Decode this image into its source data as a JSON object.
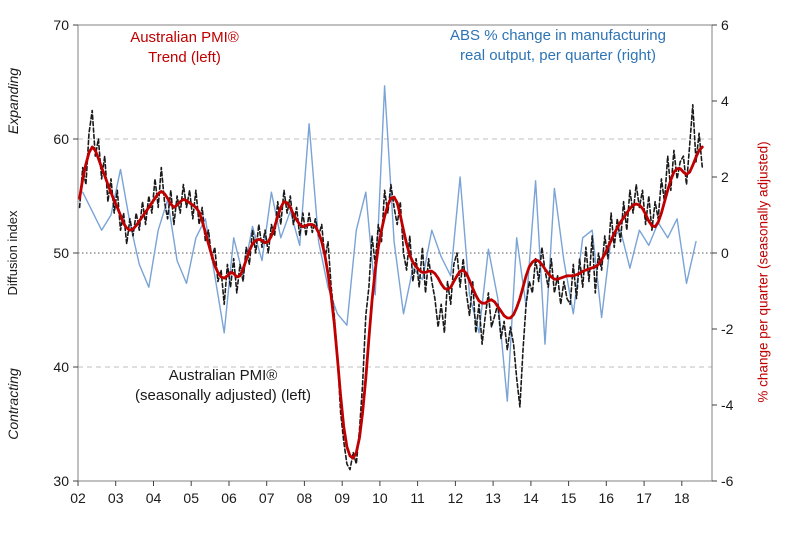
{
  "page": {
    "background": "#ffffff"
  },
  "chart": {
    "annotations": {
      "trend_line1": "Australian PMI®",
      "trend_line2": "Trend (left)",
      "abs_line1": "ABS % change in manufacturing",
      "abs_line2": "real output, per quarter (right)",
      "sa_line1": "Australian PMI®",
      "sa_line2": "(seasonally adjusted) (left)"
    },
    "left_axis": {
      "region_top": "Expanding",
      "region_bottom": "Contracting",
      "label": "Diffusion index"
    },
    "right_axis": {
      "label": "% change per quarter (seasonally adjusted)"
    },
    "colors": {
      "trend": "#C00000",
      "sa": "#1A1A1A",
      "abs_line": "#7AA3D6",
      "abs_text": "#2E74B5",
      "negative_tick": "#E60000",
      "grid_dashed": "#BFBFBF",
      "grid_dotted": "#595959",
      "frame": "#808080"
    }
  },
  "chart_data": {
    "type": "line",
    "title": "",
    "xlabel": "",
    "ylabel_left": "Diffusion index",
    "ylabel_right": "% change per quarter (seasonally adjusted)",
    "legend_position": "inside-top",
    "grid": "horizontal-dashed-at-60-and-40, dotted-at-50",
    "x_range": [
      2002,
      2018.8
    ],
    "x_tick_years": [
      2002,
      2003,
      2004,
      2005,
      2006,
      2007,
      2008,
      2009,
      2010,
      2011,
      2012,
      2013,
      2014,
      2015,
      2016,
      2017,
      2018
    ],
    "x_tick_labels": [
      "02",
      "03",
      "04",
      "05",
      "06",
      "07",
      "08",
      "09",
      "10",
      "11",
      "12",
      "13",
      "14",
      "15",
      "16",
      "17",
      "18"
    ],
    "left_ylim": [
      30,
      70
    ],
    "left_ticks": [
      70,
      60,
      50,
      40,
      30
    ],
    "right_ylim": [
      -6,
      6
    ],
    "right_ticks": [
      6,
      4,
      2,
      0,
      -2,
      -4,
      -6
    ],
    "gridlines": {
      "dashed_left": [
        60,
        40
      ],
      "dotted_left": [
        50
      ]
    },
    "series": [
      {
        "id": "abs-output",
        "name": "ABS % change in manufacturing real output, per quarter (right)",
        "axis": "right",
        "color": "#7AA3D6",
        "width": 1.4,
        "style": "solid",
        "x_start": 2002,
        "x_step_months": 3,
        "values": [
          1.6,
          1.1,
          0.6,
          1.0,
          2.2,
          0.8,
          -0.3,
          -0.9,
          0.6,
          1.4,
          -0.2,
          -0.8,
          0.4,
          0.9,
          -0.6,
          -2.1,
          0.4,
          -0.6,
          0.7,
          -0.2,
          1.6,
          0.4,
          1.1,
          0.2,
          3.4,
          0.3,
          -0.9,
          -1.6,
          -1.9,
          0.6,
          1.6,
          -1.1,
          4.4,
          0.3,
          -1.6,
          -0.4,
          -0.7,
          0.6,
          -0.1,
          -0.6,
          2.0,
          -1.1,
          -2.1,
          0.1,
          -1.2,
          -3.9,
          0.4,
          -1.4,
          1.9,
          -2.4,
          1.7,
          -0.2,
          -1.6,
          0.4,
          0.6,
          -1.7,
          0.4,
          0.6,
          -0.4,
          0.6,
          0.2,
          0.8,
          0.4,
          0.9,
          -0.8,
          0.3
        ]
      },
      {
        "id": "pmi-sa",
        "name": "Australian PMI® (seasonally adjusted) (left)",
        "axis": "left",
        "color": "#1A1A1A",
        "width": 1.6,
        "style": "dashed",
        "x_start": 2002,
        "x_step_months": 1,
        "values": [
          54.0,
          57.5,
          56.0,
          60.5,
          62.5,
          58.5,
          60.0,
          56.5,
          58.5,
          54.5,
          56.5,
          53.5,
          55.5,
          52.0,
          53.5,
          50.8,
          53.0,
          51.5,
          53.5,
          52.0,
          54.5,
          52.5,
          55.0,
          53.5,
          56.5,
          54.0,
          57.5,
          54.5,
          53.0,
          55.5,
          52.5,
          55.0,
          53.5,
          56.0,
          54.0,
          55.5,
          53.0,
          55.5,
          52.5,
          54.0,
          51.0,
          52.0,
          49.5,
          50.5,
          47.5,
          48.5,
          45.5,
          49.0,
          47.0,
          49.5,
          46.5,
          49.0,
          47.5,
          50.5,
          49.0,
          52.0,
          50.0,
          52.5,
          50.5,
          52.0,
          50.0,
          52.5,
          51.5,
          54.5,
          52.5,
          55.5,
          53.5,
          55.0,
          52.5,
          54.0,
          51.5,
          53.5,
          51.5,
          53.5,
          51.8,
          53.0,
          51.5,
          52.5,
          49.5,
          51.0,
          47.0,
          44.5,
          41.0,
          36.0,
          33.5,
          31.5,
          31.0,
          32.5,
          31.5,
          34.5,
          38.5,
          44.5,
          47.0,
          51.5,
          49.0,
          52.5,
          51.0,
          55.5,
          53.5,
          56.0,
          54.0,
          52.5,
          54.5,
          50.0,
          48.5,
          51.5,
          47.5,
          49.5,
          47.0,
          50.5,
          46.5,
          49.5,
          47.5,
          46.0,
          43.5,
          45.5,
          43.0,
          47.5,
          45.5,
          49.0,
          50.0,
          47.0,
          49.5,
          46.5,
          44.5,
          47.5,
          43.0,
          45.5,
          42.0,
          44.5,
          46.5,
          43.5,
          44.5,
          45.5,
          42.5,
          44.0,
          41.5,
          43.5,
          42.0,
          39.0,
          36.5,
          41.5,
          45.5,
          47.5,
          46.5,
          49.5,
          47.5,
          50.5,
          48.5,
          47.0,
          49.5,
          46.5,
          48.0,
          45.5,
          47.5,
          46.0,
          45.5,
          49.0,
          46.0,
          49.5,
          47.0,
          50.5,
          47.5,
          51.5,
          46.5,
          50.0,
          48.5,
          51.5,
          49.5,
          53.5,
          50.5,
          53.0,
          51.0,
          54.5,
          52.0,
          55.5,
          53.5,
          56.0,
          54.0,
          55.5,
          52.5,
          55.0,
          52.0,
          54.5,
          53.0,
          56.5,
          54.5,
          58.5,
          55.5,
          59.0,
          56.5,
          58.0,
          58.5,
          56.0,
          59.5,
          63.0,
          58.0,
          60.5,
          57.5
        ]
      },
      {
        "id": "pmi-trend",
        "name": "Australian PMI® Trend (left)",
        "axis": "left",
        "color": "#C00000",
        "width": 2.8,
        "style": "solid",
        "x_start": 2002,
        "x_step_months": 1,
        "values": [
          54.8,
          56.5,
          57.8,
          58.8,
          59.3,
          59.0,
          58.3,
          57.5,
          56.8,
          56.0,
          55.3,
          54.6,
          54.0,
          53.3,
          52.6,
          52.2,
          52.0,
          52.1,
          52.4,
          52.8,
          53.2,
          53.6,
          54.0,
          54.4,
          54.8,
          55.2,
          55.4,
          55.2,
          54.8,
          54.3,
          54.0,
          54.2,
          54.5,
          54.7,
          54.6,
          54.4,
          54.2,
          54.0,
          53.6,
          52.8,
          51.8,
          50.8,
          49.8,
          48.9,
          48.3,
          47.9,
          47.8,
          48.0,
          48.3,
          48.2,
          47.9,
          48.0,
          48.6,
          49.4,
          50.2,
          50.8,
          51.1,
          51.2,
          51.1,
          50.9,
          51.0,
          51.5,
          52.3,
          53.2,
          54.0,
          54.5,
          54.4,
          54.0,
          53.4,
          52.9,
          52.5,
          52.3,
          52.4,
          52.5,
          52.5,
          52.3,
          51.8,
          51.0,
          49.8,
          48.2,
          46.2,
          43.8,
          40.8,
          37.5,
          34.8,
          33.0,
          32.2,
          32.0,
          32.5,
          33.8,
          36.0,
          39.0,
          42.5,
          45.8,
          48.5,
          50.5,
          52.0,
          53.2,
          54.2,
          54.8,
          54.9,
          54.4,
          53.3,
          52.0,
          50.8,
          49.8,
          49.2,
          48.8,
          48.5,
          48.3,
          48.3,
          48.4,
          48.4,
          48.2,
          47.8,
          47.3,
          46.9,
          46.8,
          47.0,
          47.5,
          48.0,
          48.4,
          48.5,
          48.2,
          47.6,
          46.9,
          46.3,
          45.8,
          45.6,
          45.6,
          45.8,
          45.9,
          45.7,
          45.3,
          44.9,
          44.5,
          44.3,
          44.3,
          44.6,
          45.2,
          46.0,
          47.0,
          48.0,
          48.8,
          49.2,
          49.4,
          49.3,
          49.0,
          48.6,
          48.2,
          47.9,
          47.7,
          47.7,
          47.8,
          47.9,
          48.0,
          48.0,
          48.0,
          48.1,
          48.2,
          48.4,
          48.5,
          48.6,
          48.7,
          48.8,
          49.0,
          49.4,
          49.9,
          50.5,
          51.1,
          51.7,
          52.2,
          52.7,
          53.1,
          53.5,
          53.9,
          54.2,
          54.3,
          54.2,
          53.9,
          53.4,
          52.8,
          52.4,
          52.3,
          52.7,
          53.5,
          54.5,
          55.5,
          56.4,
          57.1,
          57.4,
          57.4,
          57.1,
          56.9,
          57.1,
          57.7,
          58.4,
          59.0,
          59.3
        ]
      }
    ]
  }
}
